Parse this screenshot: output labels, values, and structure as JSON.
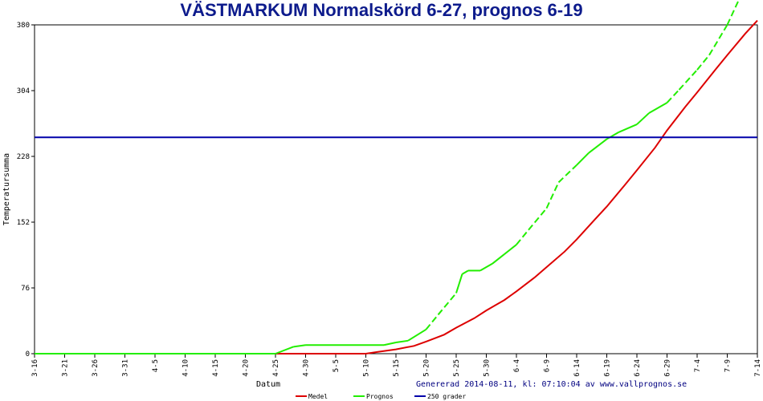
{
  "chart_data": {
    "type": "line",
    "title": "VÄSTMARKUM Normalskörd 6-27, prognos 6-19",
    "xlabel": "Datum",
    "ylabel": "Temperatursumma",
    "ylim": [
      0,
      380
    ],
    "yticks": [
      0,
      76,
      152,
      228,
      304,
      380
    ],
    "x_start_date": "03-16",
    "x_end_date": "07-14",
    "xticks": [
      "3-16",
      "3-21",
      "3-26",
      "3-31",
      "4-5",
      "4-10",
      "4-15",
      "4-20",
      "4-25",
      "4-30",
      "5-5",
      "5-10",
      "5-15",
      "5-20",
      "5-25",
      "5-30",
      "6-4",
      "6-9",
      "6-14",
      "6-19",
      "6-24",
      "6-29",
      "7-4",
      "7-9",
      "7-14"
    ],
    "grid": false,
    "legend_position": "bottom",
    "series": [
      {
        "name": "Medel",
        "color": "#dd0000",
        "style": "solid",
        "points": [
          [
            "03-16",
            0
          ],
          [
            "04-25",
            0
          ],
          [
            "05-10",
            0
          ],
          [
            "05-12",
            2
          ],
          [
            "05-15",
            5
          ],
          [
            "05-18",
            9
          ],
          [
            "05-20",
            14
          ],
          [
            "05-23",
            22
          ],
          [
            "05-25",
            30
          ],
          [
            "05-28",
            41
          ],
          [
            "05-30",
            50
          ],
          [
            "06-02",
            62
          ],
          [
            "06-04",
            72
          ],
          [
            "06-07",
            88
          ],
          [
            "06-09",
            100
          ],
          [
            "06-12",
            118
          ],
          [
            "06-14",
            132
          ],
          [
            "06-17",
            155
          ],
          [
            "06-19",
            170
          ],
          [
            "06-22",
            195
          ],
          [
            "06-24",
            212
          ],
          [
            "06-27",
            238
          ],
          [
            "06-29",
            258
          ],
          [
            "07-02",
            285
          ],
          [
            "07-04",
            302
          ],
          [
            "07-07",
            328
          ],
          [
            "07-09",
            345
          ],
          [
            "07-12",
            370
          ],
          [
            "07-14",
            385
          ]
        ]
      },
      {
        "name": "Prognos",
        "color": "#22ee00",
        "style": "mixed",
        "points": [
          [
            "03-16",
            0
          ],
          [
            "04-25",
            0
          ],
          [
            "04-28",
            8
          ],
          [
            "04-30",
            10
          ],
          [
            "05-05",
            10
          ],
          [
            "05-10",
            10
          ],
          [
            "05-13",
            10
          ],
          [
            "05-15",
            13
          ],
          [
            "05-17",
            15
          ],
          [
            "05-20",
            28
          ],
          [
            "05-22",
            45
          ],
          [
            "05-25",
            70
          ],
          [
            "05-26",
            92
          ],
          [
            "05-27",
            96
          ],
          [
            "05-29",
            96
          ],
          [
            "05-31",
            104
          ],
          [
            "06-02",
            115
          ],
          [
            "06-04",
            126
          ],
          [
            "06-06",
            143
          ],
          [
            "06-09",
            168
          ],
          [
            "06-11",
            198
          ],
          [
            "06-14",
            218
          ],
          [
            "06-16",
            232
          ],
          [
            "06-19",
            248
          ],
          [
            "06-21",
            256
          ],
          [
            "06-24",
            265
          ],
          [
            "06-26",
            278
          ],
          [
            "06-29",
            290
          ],
          [
            "07-01",
            305
          ],
          [
            "07-04",
            328
          ],
          [
            "07-06",
            345
          ],
          [
            "07-09",
            380
          ],
          [
            "07-11",
            410
          ]
        ],
        "dashed_ranges": [
          [
            "05-20",
            "05-25"
          ],
          [
            "06-04",
            "06-14"
          ],
          [
            "06-29",
            "07-11"
          ]
        ]
      },
      {
        "name": "250 grader",
        "color": "#0000aa",
        "style": "solid",
        "points": [
          [
            "03-16",
            250
          ],
          [
            "07-14",
            250
          ]
        ]
      }
    ]
  },
  "footer": {
    "generated": "Genererad 2014-08-11, kl: 07:10:04 av www.vallprognos.se"
  }
}
